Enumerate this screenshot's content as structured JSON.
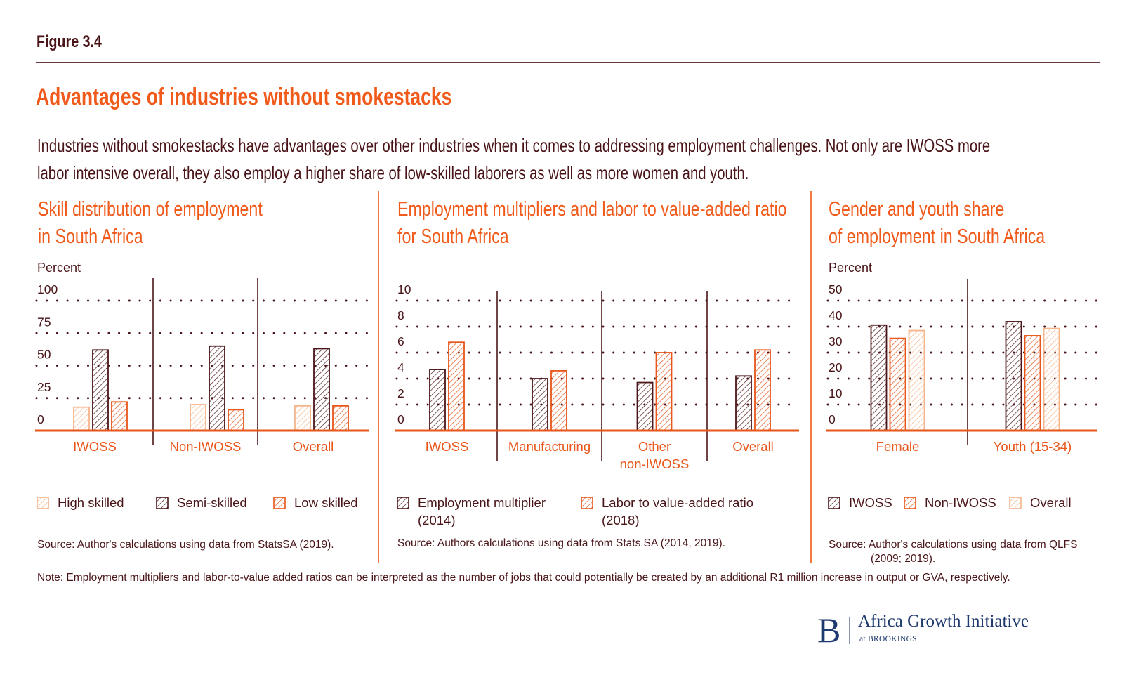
{
  "figure_label": "Figure 3.4",
  "title": "Advantages of industries without smokestacks",
  "description": [
    "Industries without smokestacks have advantages over other industries when it comes to addressing employment challenges. Not only are IWOSS more",
    "labor intensive overall, they also employ a higher share of low-skilled laborers as well as more women and youth."
  ],
  "colors": {
    "dark": "#4a1518",
    "orange": "#e8561a",
    "light": "#f6b48a",
    "title_orange": "#f05a1a",
    "brand_navy": "#1f3a6e"
  },
  "note": "Note: Employment multipliers and labor-to-value added ratios can be interpreted as the number of jobs that could potentially be created by an additional R1 million increase in output or GVA, respectively.",
  "logo": {
    "initial": "B",
    "name": "Africa Growth Initiative",
    "sub": "at BROOKINGS"
  },
  "chart_data": [
    {
      "type": "bar",
      "title": "Skill distribution of employment in South Africa",
      "title_lines": [
        "Skill distribution of employment",
        "in South Africa"
      ],
      "ylabel": "Percent",
      "xlabel": "",
      "ylim": [
        0,
        100
      ],
      "yticks": [
        0,
        25,
        50,
        75,
        100
      ],
      "grid": true,
      "categories": [
        "IWOSS",
        "Non-IWOSS",
        "Overall"
      ],
      "series": [
        {
          "name": "High skilled",
          "color": "light",
          "values": [
            18,
            20,
            19
          ]
        },
        {
          "name": "Semi-skilled",
          "color": "dark",
          "values": [
            62,
            65,
            63
          ]
        },
        {
          "name": "Low skilled",
          "color": "orange",
          "values": [
            22,
            16,
            19
          ]
        }
      ],
      "legend": "bottom",
      "source": "Source: Author's calculations using data from StatsSA (2019)."
    },
    {
      "type": "bar",
      "title": "Employment multipliers and labor to value-added ratio for South Africa",
      "title_lines": [
        "Employment multipliers and labor to value-added ratio",
        "for South Africa"
      ],
      "ylabel": "",
      "xlabel": "",
      "ylim": [
        0,
        10
      ],
      "yticks": [
        0,
        2,
        4,
        6,
        8,
        10
      ],
      "grid": true,
      "categories": [
        "IWOSS",
        "Manufacturing",
        "Other non-IWOSS",
        "Overall"
      ],
      "category_lines": [
        [
          "IWOSS"
        ],
        [
          "Manufacturing"
        ],
        [
          "Other",
          "non-IWOSS"
        ],
        [
          "Overall"
        ]
      ],
      "series": [
        {
          "name": "Employment multiplier (2014)",
          "name_lines": [
            "Employment multiplier",
            "(2014)"
          ],
          "color": "dark",
          "values": [
            4.7,
            4.0,
            3.7,
            4.2
          ]
        },
        {
          "name": "Labor to value-added ratio (2018)",
          "name_lines": [
            "Labor to value-added ratio",
            "(2018)"
          ],
          "color": "orange",
          "values": [
            6.8,
            4.6,
            6.0,
            6.2
          ]
        }
      ],
      "legend": "bottom",
      "source": "Source: Authors calculations using data from Stats SA (2014, 2019)."
    },
    {
      "type": "bar",
      "title": "Gender and youth share of employment in South Africa",
      "title_lines": [
        "Gender and youth share",
        "of employment in South Africa"
      ],
      "ylabel": "Percent",
      "xlabel": "",
      "ylim": [
        0,
        50
      ],
      "yticks": [
        0,
        10,
        20,
        30,
        40,
        50
      ],
      "grid": true,
      "categories": [
        "Female",
        "Youth (15-34)"
      ],
      "series": [
        {
          "name": "IWOSS",
          "color": "dark",
          "values": [
            40.6,
            41.9
          ]
        },
        {
          "name": "Non-IWOSS",
          "color": "orange",
          "values": [
            35.5,
            36.5
          ]
        },
        {
          "name": "Overall",
          "color": "light",
          "values": [
            38.5,
            39.3
          ]
        }
      ],
      "legend": "bottom",
      "source_lines": [
        "Source: Author's calculations using data from QLFS",
        "(2009; 2019)."
      ]
    }
  ]
}
